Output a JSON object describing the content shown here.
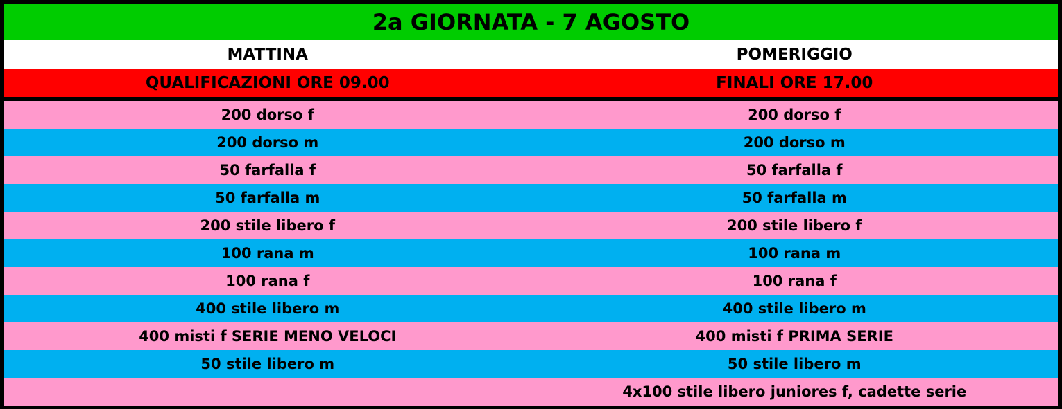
{
  "title": "2a GIORNATA - 7 AGOSTO",
  "columns": [
    "MATTINA",
    "POMERIGGIO"
  ],
  "sessions": [
    "QUALIFICAZIONI ORE 09.00",
    "FINALI ORE 17.00"
  ],
  "colors": {
    "title_bg": "#00cc00",
    "header_bg": "#ffffff",
    "session_bg": "#ff0000",
    "row_pink": "#ff99cc",
    "row_blue": "#00b0f0"
  },
  "events": [
    [
      "200 dorso f",
      "200 dorso f"
    ],
    [
      "200 dorso m",
      "200 dorso m"
    ],
    [
      "50 farfalla f",
      "50 farfalla f"
    ],
    [
      "50 farfalla m",
      "50 farfalla m"
    ],
    [
      "200 stile libero f",
      "200 stile libero f"
    ],
    [
      "100 rana m",
      "100 rana m"
    ],
    [
      "100 rana f",
      "100 rana f"
    ],
    [
      "400 stile libero m",
      "400 stile libero m"
    ],
    [
      "400 misti f SERIE MENO VELOCI",
      "400 misti f PRIMA SERIE"
    ],
    [
      "50 stile libero m",
      "50 stile libero m"
    ],
    [
      "",
      "4x100 stile libero juniores f, cadette serie"
    ]
  ]
}
